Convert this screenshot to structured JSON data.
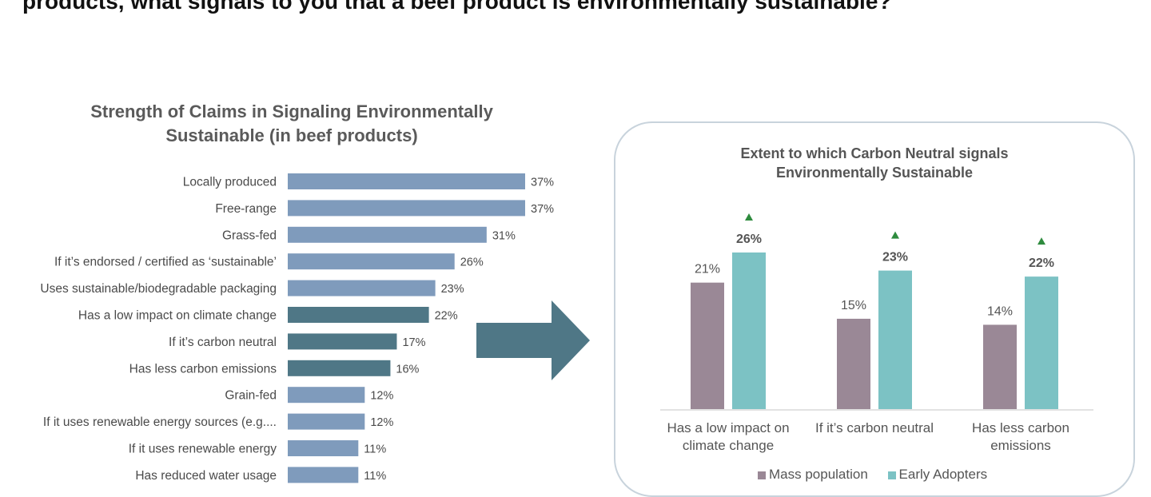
{
  "page": {
    "question_text": "products, what signals to you that a beef product is environmentally sustainable?"
  },
  "colors": {
    "bar_default": "#7f9bbc",
    "bar_highlight": "#4f7786",
    "arrow": "#4f7786",
    "mass_population": "#9a8896",
    "early_adopters": "#7cc2c4",
    "up_marker": "#2e8b3e"
  },
  "chart_data": [
    {
      "type": "bar",
      "orientation": "horizontal",
      "title_lines": [
        "Strength of Claims in Signaling Environmentally",
        "Sustainable (in beef products)"
      ],
      "categories": [
        "Locally produced",
        "Free-range",
        "Grass-fed",
        "If it’s endorsed / certified as ‘sustainable’",
        "Uses sustainable/biodegradable packaging",
        "Has a low impact on climate change",
        "If it’s carbon neutral",
        "Has less carbon emissions",
        "Grain-fed",
        "If it uses renewable energy sources (e.g....",
        "If it uses renewable energy",
        "Has reduced water usage"
      ],
      "values": [
        37,
        37,
        31,
        26,
        23,
        22,
        17,
        16,
        12,
        12,
        11,
        11
      ],
      "value_labels": [
        "37%",
        "37%",
        "31%",
        "26%",
        "23%",
        "22%",
        "17%",
        "16%",
        "12%",
        "12%",
        "11%",
        "11%"
      ],
      "highlighted": [
        false,
        false,
        false,
        false,
        false,
        true,
        true,
        true,
        false,
        false,
        false,
        false
      ],
      "unit": "%",
      "xlim": [
        0,
        40
      ],
      "grid": false
    },
    {
      "type": "bar",
      "orientation": "vertical",
      "title_lines": [
        "Extent to which Carbon Neutral signals",
        "Environmentally Sustainable"
      ],
      "categories": [
        [
          "Has a low impact on",
          "climate change"
        ],
        [
          "If it’s carbon neutral"
        ],
        [
          "Has less carbon",
          "emissions"
        ]
      ],
      "series": [
        {
          "name": "Mass population",
          "values": [
            21,
            15,
            14
          ],
          "labels": [
            "21%",
            "15%",
            "14%"
          ]
        },
        {
          "name": "Early Adopters",
          "values": [
            26,
            23,
            22
          ],
          "labels": [
            "26%",
            "23%",
            "22%"
          ],
          "up_marker": [
            true,
            true,
            true
          ]
        }
      ],
      "unit": "%",
      "ylim": [
        0,
        30
      ],
      "legend": "bottom",
      "grid": false
    }
  ]
}
